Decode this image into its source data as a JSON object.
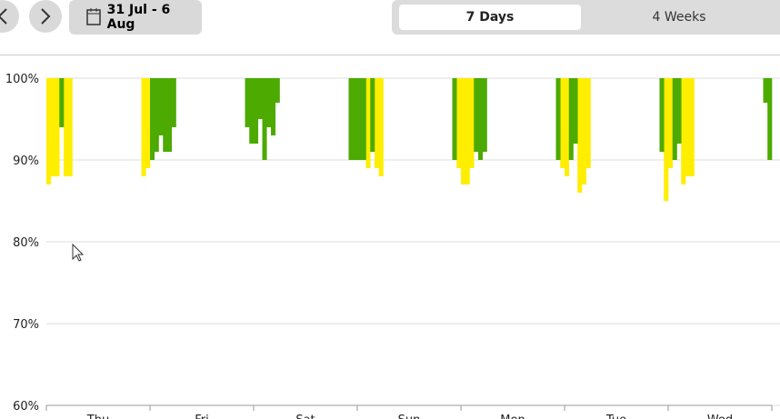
{
  "toolbar": {
    "date_range": "31 Jul - 6 Aug",
    "tabs": [
      "7 Days",
      "4 Weeks"
    ],
    "active_tab": 0
  },
  "chart_data": {
    "type": "bar",
    "categories": [
      "Thu",
      "Fri",
      "Sat",
      "Sun",
      "Mon",
      "Tue",
      "Wed"
    ],
    "xlim": [
      0,
      168
    ],
    "xticks": [
      0,
      24,
      48,
      72,
      96,
      120,
      144,
      168
    ],
    "ylim": [
      60,
      100
    ],
    "yticks": [
      {
        "value": 60,
        "label": "60%"
      },
      {
        "value": 70,
        "label": "70%"
      },
      {
        "value": 80,
        "label": "80%"
      },
      {
        "value": 90,
        "label": "90%"
      },
      {
        "value": 100,
        "label": "100%"
      }
    ],
    "grid": true,
    "series": [
      {
        "color": "#ffee00",
        "x": [
          0,
          1,
          2,
          4,
          5,
          22,
          23,
          74,
          76,
          77,
          95,
          96,
          97,
          98,
          119,
          120,
          123,
          124,
          125,
          143,
          144,
          147,
          148,
          149
        ],
        "values": [
          87,
          88,
          88,
          88,
          88,
          88,
          89,
          89,
          89,
          88,
          89,
          87,
          87,
          89,
          89,
          88,
          86,
          87,
          89,
          85,
          89,
          87,
          88,
          88
        ]
      },
      {
        "color": "#4caa00",
        "x": [
          3,
          24,
          25,
          26,
          27,
          28,
          29,
          46,
          47,
          48,
          49,
          50,
          51,
          52,
          53,
          70,
          71,
          72,
          73,
          75,
          94,
          99,
          100,
          101,
          118,
          121,
          122,
          142,
          145,
          146,
          166,
          167
        ],
        "values": [
          94,
          90,
          91,
          93,
          91,
          91,
          94,
          94,
          92,
          92,
          95,
          90,
          94,
          93,
          97,
          90,
          90,
          90,
          90,
          91,
          90,
          91,
          90,
          91,
          90,
          90,
          92,
          91,
          90,
          92,
          97,
          90
        ]
      }
    ]
  }
}
